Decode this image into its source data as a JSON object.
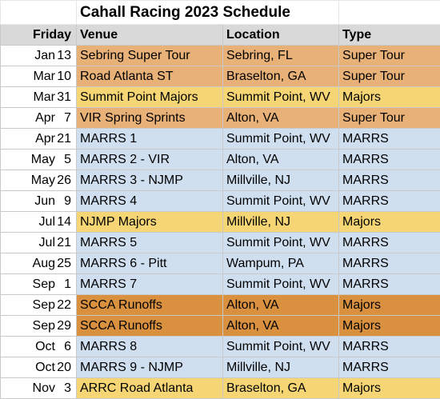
{
  "title": "Cahall Racing 2023 Schedule",
  "headers": {
    "date": "Friday",
    "venue": "Venue",
    "location": "Location",
    "type": "Type"
  },
  "colors": {
    "super_tour": "#e8b177",
    "majors": "#f6d674",
    "marrs": "#cfdff0",
    "runoffs": "#d9913f",
    "header": "#d9d9d9"
  },
  "rows": [
    {
      "month": "Jan",
      "day": "13",
      "venue": "Sebring Super Tour",
      "location": "Sebring, FL",
      "type": "Super Tour",
      "cat": "tour"
    },
    {
      "month": "Mar",
      "day": "10",
      "venue": "Road Atlanta ST",
      "location": "Braselton, GA",
      "type": "Super Tour",
      "cat": "tour"
    },
    {
      "month": "Mar",
      "day": "31",
      "venue": "Summit Point Majors",
      "location": "Summit Point, WV",
      "type": "Majors",
      "cat": "majors"
    },
    {
      "month": "Apr",
      "day": "7",
      "venue": "VIR Spring Sprints",
      "location": "Alton, VA",
      "type": "Super Tour",
      "cat": "tour"
    },
    {
      "month": "Apr",
      "day": "21",
      "venue": "MARRS 1",
      "location": "Summit Point, WV",
      "type": "MARRS",
      "cat": "marrs"
    },
    {
      "month": "May",
      "day": "5",
      "venue": "MARRS 2 - VIR",
      "location": "Alton, VA",
      "type": "MARRS",
      "cat": "marrs"
    },
    {
      "month": "May",
      "day": "26",
      "venue": "MARRS 3 - NJMP",
      "location": "Millville, NJ",
      "type": "MARRS",
      "cat": "marrs"
    },
    {
      "month": "Jun",
      "day": "9",
      "venue": "MARRS 4",
      "location": "Summit Point, WV",
      "type": "MARRS",
      "cat": "marrs"
    },
    {
      "month": "Jul",
      "day": "14",
      "venue": "NJMP Majors",
      "location": "Millville, NJ",
      "type": "Majors",
      "cat": "majors"
    },
    {
      "month": "Jul",
      "day": "21",
      "venue": "MARRS 5",
      "location": "Summit Point, WV",
      "type": "MARRS",
      "cat": "marrs"
    },
    {
      "month": "Aug",
      "day": "25",
      "venue": "MARRS 6 - Pitt",
      "location": "Wampum, PA",
      "type": "MARRS",
      "cat": "marrs"
    },
    {
      "month": "Sep",
      "day": "1",
      "venue": "MARRS 7",
      "location": "Summit Point, WV",
      "type": "MARRS",
      "cat": "marrs"
    },
    {
      "month": "Sep",
      "day": "22",
      "venue": "SCCA Runoffs",
      "location": "Alton, VA",
      "type": "Majors",
      "cat": "runoffs"
    },
    {
      "month": "Sep",
      "day": "29",
      "venue": "SCCA Runoffs",
      "location": "Alton, VA",
      "type": "Majors",
      "cat": "runoffs"
    },
    {
      "month": "Oct",
      "day": "6",
      "venue": "MARRS 8",
      "location": "Summit Point, WV",
      "type": "MARRS",
      "cat": "marrs"
    },
    {
      "month": "Oct",
      "day": "20",
      "venue": "MARRS 9 - NJMP",
      "location": "Millville, NJ",
      "type": "MARRS",
      "cat": "marrs"
    },
    {
      "month": "Nov",
      "day": "3",
      "venue": "ARRC Road Atlanta",
      "location": "Braselton, GA",
      "type": "Majors",
      "cat": "majors"
    }
  ]
}
